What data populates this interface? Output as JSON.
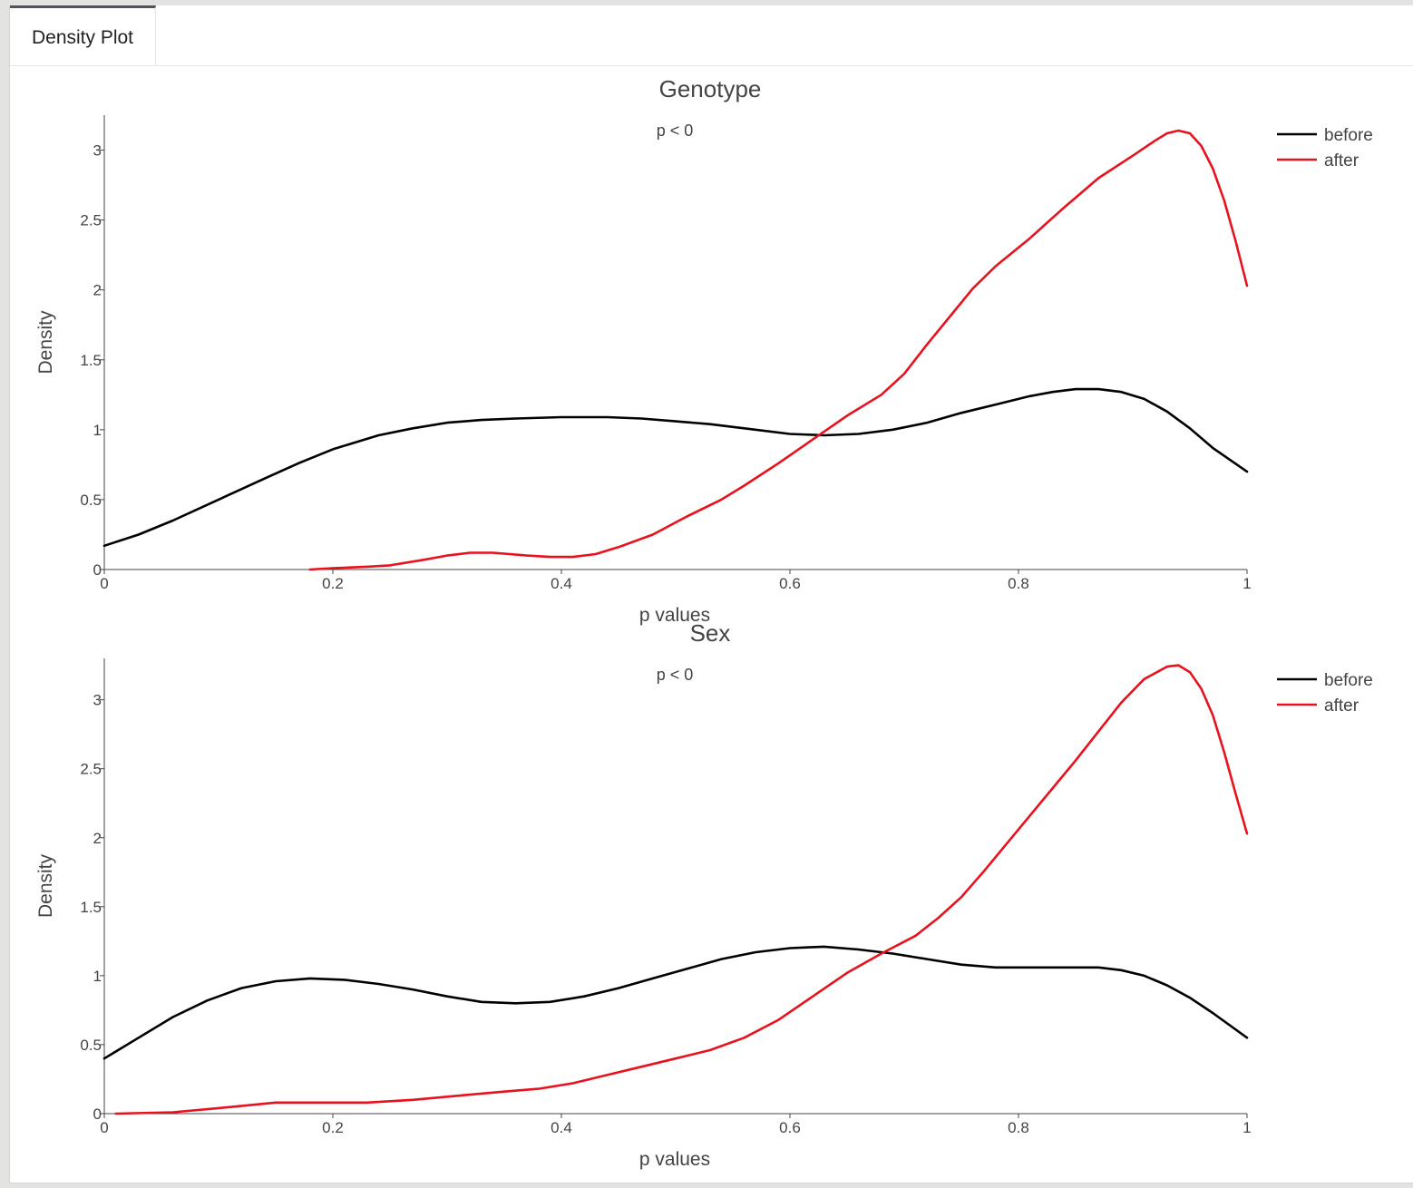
{
  "tabs": [
    {
      "label": "Density Plot",
      "active": true
    }
  ],
  "chart_data": [
    {
      "type": "line",
      "title": "Genotype",
      "annotation": "p <  0",
      "xlabel": "p values",
      "ylabel": "Density",
      "xlim": [
        0,
        1
      ],
      "ylim": [
        0,
        3.25
      ],
      "xticks": [
        "0",
        "0.2",
        "0.4",
        "0.6",
        "0.8",
        "1"
      ],
      "yticks": [
        "0",
        "0.5",
        "1",
        "1.5",
        "2",
        "2.5",
        "3"
      ],
      "legend_position": "top-right",
      "series": [
        {
          "name": "before",
          "color": "#000000",
          "x": [
            0,
            0.03,
            0.06,
            0.1,
            0.14,
            0.17,
            0.2,
            0.24,
            0.27,
            0.3,
            0.33,
            0.36,
            0.4,
            0.44,
            0.47,
            0.5,
            0.53,
            0.56,
            0.6,
            0.63,
            0.66,
            0.69,
            0.72,
            0.75,
            0.78,
            0.81,
            0.83,
            0.85,
            0.87,
            0.89,
            0.91,
            0.93,
            0.95,
            0.97,
            1.0
          ],
          "y": [
            0.17,
            0.25,
            0.35,
            0.5,
            0.65,
            0.76,
            0.86,
            0.96,
            1.01,
            1.05,
            1.07,
            1.08,
            1.09,
            1.09,
            1.08,
            1.06,
            1.04,
            1.01,
            0.97,
            0.96,
            0.97,
            1.0,
            1.05,
            1.12,
            1.18,
            1.24,
            1.27,
            1.29,
            1.29,
            1.27,
            1.22,
            1.13,
            1.01,
            0.87,
            0.7
          ]
        },
        {
          "name": "after",
          "color": "#e8121e",
          "x": [
            0.18,
            0.2,
            0.23,
            0.25,
            0.28,
            0.3,
            0.32,
            0.34,
            0.37,
            0.39,
            0.41,
            0.43,
            0.45,
            0.48,
            0.51,
            0.54,
            0.56,
            0.59,
            0.62,
            0.65,
            0.68,
            0.7,
            0.72,
            0.74,
            0.76,
            0.78,
            0.81,
            0.84,
            0.87,
            0.9,
            0.92,
            0.93,
            0.94,
            0.95,
            0.96,
            0.97,
            0.98,
            0.99,
            1.0
          ],
          "y": [
            0.0,
            0.01,
            0.02,
            0.03,
            0.07,
            0.1,
            0.12,
            0.12,
            0.1,
            0.09,
            0.09,
            0.11,
            0.16,
            0.25,
            0.38,
            0.5,
            0.6,
            0.76,
            0.93,
            1.1,
            1.25,
            1.4,
            1.61,
            1.81,
            2.01,
            2.17,
            2.37,
            2.59,
            2.8,
            2.96,
            3.07,
            3.12,
            3.14,
            3.12,
            3.03,
            2.87,
            2.64,
            2.35,
            2.03
          ]
        }
      ]
    },
    {
      "type": "line",
      "title": "Sex",
      "annotation": "p <  0",
      "xlabel": "p values",
      "ylabel": "Density",
      "xlim": [
        0,
        1
      ],
      "ylim": [
        0,
        3.3
      ],
      "xticks": [
        "0",
        "0.2",
        "0.4",
        "0.6",
        "0.8",
        "1"
      ],
      "yticks": [
        "0",
        "0.5",
        "1",
        "1.5",
        "2",
        "2.5",
        "3"
      ],
      "legend_position": "top-right",
      "series": [
        {
          "name": "before",
          "color": "#000000",
          "x": [
            0,
            0.03,
            0.06,
            0.09,
            0.12,
            0.15,
            0.18,
            0.21,
            0.24,
            0.27,
            0.3,
            0.33,
            0.36,
            0.39,
            0.42,
            0.45,
            0.48,
            0.51,
            0.54,
            0.57,
            0.6,
            0.63,
            0.66,
            0.69,
            0.72,
            0.75,
            0.78,
            0.81,
            0.84,
            0.87,
            0.89,
            0.91,
            0.93,
            0.95,
            0.97,
            1.0
          ],
          "y": [
            0.4,
            0.55,
            0.7,
            0.82,
            0.91,
            0.96,
            0.98,
            0.97,
            0.94,
            0.9,
            0.85,
            0.81,
            0.8,
            0.81,
            0.85,
            0.91,
            0.98,
            1.05,
            1.12,
            1.17,
            1.2,
            1.21,
            1.19,
            1.16,
            1.12,
            1.08,
            1.06,
            1.06,
            1.06,
            1.06,
            1.04,
            1.0,
            0.93,
            0.84,
            0.73,
            0.55
          ]
        },
        {
          "name": "after",
          "color": "#e8121e",
          "x": [
            0.01,
            0.06,
            0.1,
            0.15,
            0.19,
            0.23,
            0.27,
            0.31,
            0.35,
            0.38,
            0.41,
            0.44,
            0.47,
            0.5,
            0.53,
            0.56,
            0.59,
            0.62,
            0.65,
            0.68,
            0.71,
            0.73,
            0.75,
            0.77,
            0.79,
            0.81,
            0.83,
            0.85,
            0.87,
            0.89,
            0.91,
            0.93,
            0.94,
            0.95,
            0.96,
            0.97,
            0.98,
            0.99,
            1.0
          ],
          "y": [
            0.0,
            0.01,
            0.04,
            0.08,
            0.08,
            0.08,
            0.1,
            0.13,
            0.16,
            0.18,
            0.22,
            0.28,
            0.34,
            0.4,
            0.46,
            0.55,
            0.68,
            0.85,
            1.02,
            1.16,
            1.29,
            1.42,
            1.57,
            1.76,
            1.96,
            2.16,
            2.36,
            2.56,
            2.77,
            2.98,
            3.15,
            3.24,
            3.25,
            3.2,
            3.08,
            2.89,
            2.62,
            2.32,
            2.03
          ]
        }
      ]
    }
  ]
}
